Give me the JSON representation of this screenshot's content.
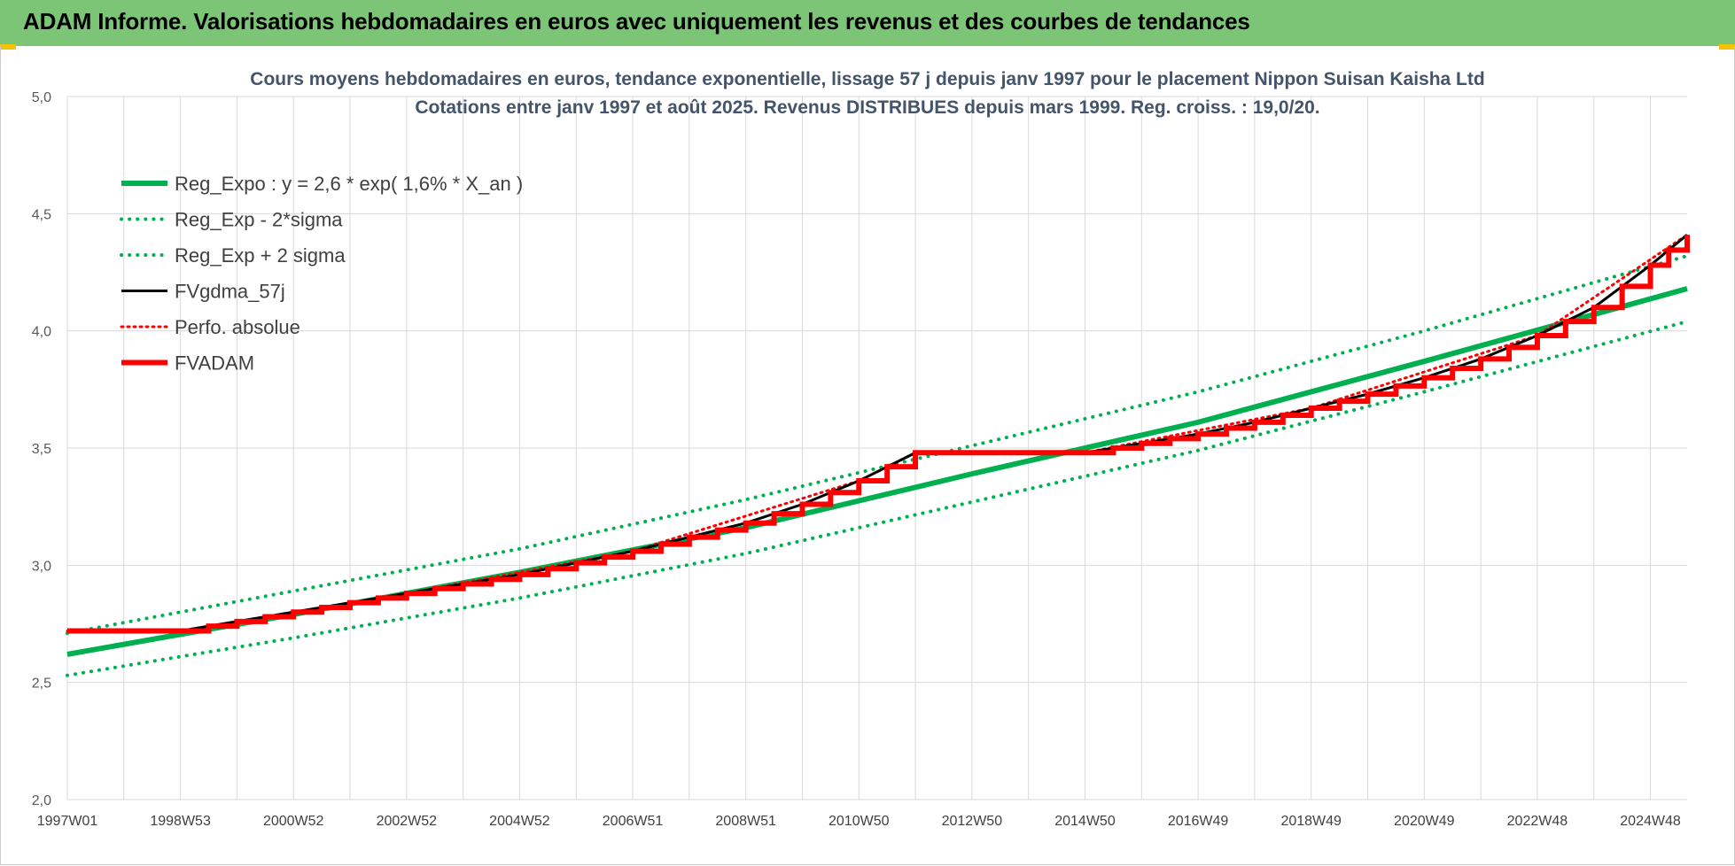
{
  "header": {
    "title": "ADAM Informe. Valorisations hebdomadaires en euros avec uniquement les revenus et des courbes de tendances",
    "background": "#7cc576"
  },
  "chart_data": {
    "type": "line",
    "title_line1": "Cours moyens hebdomadaires en euros, tendance exponentielle, lissage 57 j depuis janv 1997 pour le placement Nippon Suisan Kaisha Ltd",
    "title_line2": "Cotations entre janv 1997 et août 2025.  Revenus DISTRIBUES depuis mars 1999. Reg. croiss. : 19,0/20.",
    "ylim": [
      2.0,
      5.0
    ],
    "yticks": [
      "2,0",
      "2,5",
      "3,0",
      "3,5",
      "4,0",
      "4,5",
      "5,0"
    ],
    "xlim": [
      1997.0,
      2025.65
    ],
    "xticks": [
      {
        "label": "1997W01",
        "x": 1997.0
      },
      {
        "label": "1998W53",
        "x": 1999.0
      },
      {
        "label": "2000W52",
        "x": 2001.0
      },
      {
        "label": "2002W52",
        "x": 2003.0
      },
      {
        "label": "2004W52",
        "x": 2005.0
      },
      {
        "label": "2006W51",
        "x": 2007.0
      },
      {
        "label": "2008W51",
        "x": 2009.0
      },
      {
        "label": "2010W50",
        "x": 2011.0
      },
      {
        "label": "2012W50",
        "x": 2013.0
      },
      {
        "label": "2014W50",
        "x": 2015.0
      },
      {
        "label": "2016W49",
        "x": 2017.0
      },
      {
        "label": "2018W49",
        "x": 2019.0
      },
      {
        "label": "2020W49",
        "x": 2021.0
      },
      {
        "label": "2022W48",
        "x": 2023.0
      },
      {
        "label": "2024W48",
        "x": 2025.0
      }
    ],
    "grid": true,
    "legend_position": "top-left",
    "series": [
      {
        "name": "Reg_Expo : y = 2,6 * exp( 1,6% *  X_an )",
        "color": "#00b050",
        "style": "solid",
        "x": [
          1997.0,
          2001.0,
          2005.0,
          2009.0,
          2013.0,
          2017.0,
          2021.0,
          2025.65
        ],
        "y": [
          2.62,
          2.79,
          2.97,
          3.16,
          3.39,
          3.61,
          3.87,
          4.18
        ]
      },
      {
        "name": "Reg_Exp - 2*sigma",
        "color": "#00b050",
        "style": "dotted",
        "x": [
          1997.0,
          2001.0,
          2005.0,
          2009.0,
          2013.0,
          2017.0,
          2021.0,
          2025.65
        ],
        "y": [
          2.53,
          2.69,
          2.86,
          3.05,
          3.27,
          3.49,
          3.74,
          4.04
        ]
      },
      {
        "name": "Reg_Exp + 2 sigma",
        "color": "#00b050",
        "style": "dotted",
        "x": [
          1997.0,
          2001.0,
          2005.0,
          2009.0,
          2013.0,
          2017.0,
          2021.0,
          2025.65
        ],
        "y": [
          2.71,
          2.89,
          3.07,
          3.28,
          3.51,
          3.74,
          4.0,
          4.32
        ]
      },
      {
        "name": "FVgdma_57j",
        "color": "#000000",
        "style": "solid",
        "x": [
          1997.0,
          1999.0,
          2000.0,
          2001.0,
          2002.0,
          2003.0,
          2004.0,
          2005.0,
          2006.0,
          2007.0,
          2008.0,
          2009.0,
          2010.0,
          2011.0,
          2012.0,
          2015.0,
          2016.0,
          2017.0,
          2018.0,
          2019.0,
          2020.0,
          2021.0,
          2022.0,
          2023.0,
          2024.0,
          2025.0,
          2025.65
        ],
        "y": [
          2.72,
          2.72,
          2.76,
          2.8,
          2.84,
          2.88,
          2.92,
          2.96,
          3.01,
          3.06,
          3.12,
          3.18,
          3.26,
          3.36,
          3.48,
          3.48,
          3.52,
          3.56,
          3.61,
          3.67,
          3.73,
          3.8,
          3.88,
          3.98,
          4.1,
          4.28,
          4.41
        ]
      },
      {
        "name": "Perfo. absolue",
        "color": "#ff0000",
        "style": "dotted",
        "x": [
          1997.0,
          1999.0,
          2003.0,
          2007.0,
          2011.0,
          2012.0,
          2015.0,
          2019.0,
          2023.0,
          2025.65
        ],
        "y": [
          2.72,
          2.72,
          2.88,
          3.06,
          3.36,
          3.48,
          3.48,
          3.67,
          3.98,
          4.41
        ]
      },
      {
        "name": "FVADAM",
        "color": "#ff0000",
        "style": "step",
        "x": [
          1997.0,
          1999.0,
          2000.0,
          2001.0,
          2002.0,
          2003.0,
          2004.0,
          2005.0,
          2006.0,
          2007.0,
          2008.0,
          2009.0,
          2010.0,
          2011.0,
          2012.0,
          2015.0,
          2016.0,
          2017.0,
          2018.0,
          2019.0,
          2020.0,
          2021.0,
          2022.0,
          2023.0,
          2024.0,
          2025.0,
          2025.65
        ],
        "y": [
          2.72,
          2.72,
          2.76,
          2.8,
          2.84,
          2.88,
          2.92,
          2.96,
          3.01,
          3.06,
          3.12,
          3.18,
          3.26,
          3.36,
          3.48,
          3.48,
          3.52,
          3.56,
          3.61,
          3.67,
          3.73,
          3.8,
          3.88,
          3.98,
          4.1,
          4.28,
          4.41
        ]
      }
    ]
  }
}
